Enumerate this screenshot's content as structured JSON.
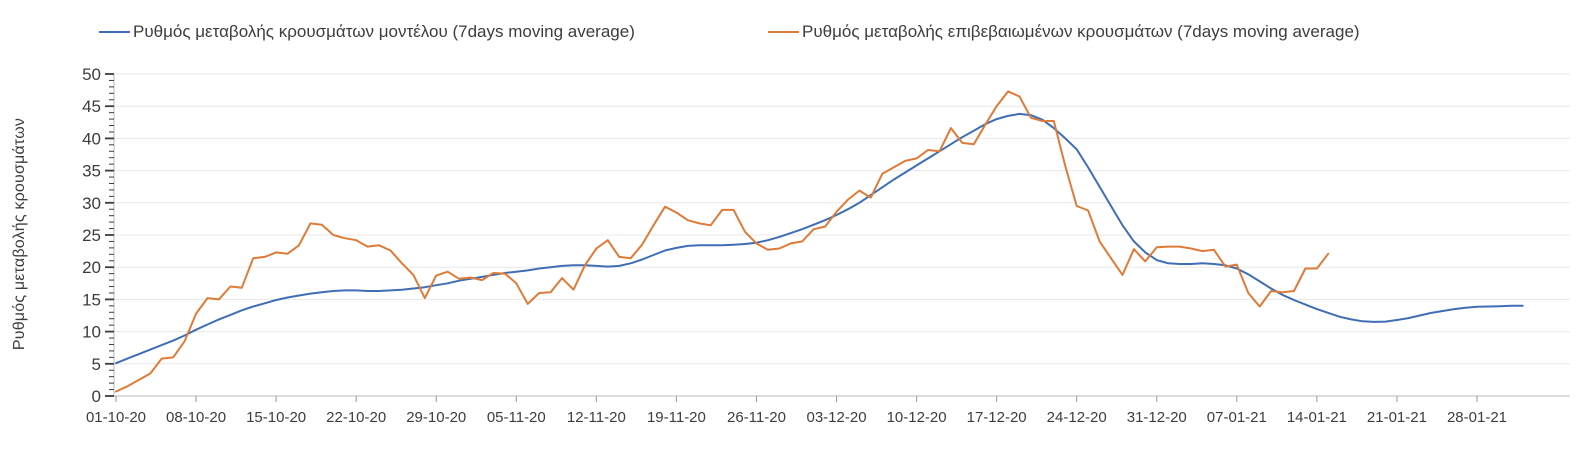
{
  "y_axis_title": "Ρυθμός μεταβολής κρουσμάτων",
  "colors": {
    "model_line": "#3f6eb5",
    "confirmed_line": "#de7b38",
    "gridline": "#e8e8e8",
    "axis_line": "#b8b8b8",
    "tick": "#3c3c3c",
    "label_text": "#3d3d3d"
  },
  "chart_data": {
    "type": "line",
    "title": "",
    "xlabel": "",
    "ylabel": "Ρυθμός μεταβολής κρουσμάτων",
    "ylim": [
      0,
      50
    ],
    "y_ticks": [
      0,
      5,
      10,
      15,
      20,
      25,
      30,
      35,
      40,
      45,
      50
    ],
    "grid": "horizontal",
    "legend_position": "top",
    "x_start_date": "01-10-20",
    "tick_step_days": 7,
    "x_tick_labels": [
      "01-10-20",
      "08-10-20",
      "15-10-20",
      "22-10-20",
      "29-10-20",
      "05-11-20",
      "12-11-20",
      "19-11-20",
      "26-11-20",
      "03-12-20",
      "10-12-20",
      "17-12-20",
      "24-12-20",
      "31-12-20",
      "07-01-21",
      "14-01-21",
      "21-01-21",
      "28-01-21"
    ],
    "series": [
      {
        "key": "model",
        "name": "Ρυθμός μεταβολής κρουσμάτων μοντέλου (7days moving average)",
        "color": "#3f6eb5",
        "start_day": 0,
        "values": [
          5.1,
          5.8,
          6.5,
          7.2,
          7.9,
          8.6,
          9.4,
          10.3,
          11.1,
          11.9,
          12.6,
          13.3,
          13.9,
          14.4,
          14.9,
          15.3,
          15.6,
          15.9,
          16.1,
          16.3,
          16.4,
          16.4,
          16.3,
          16.3,
          16.4,
          16.5,
          16.7,
          16.9,
          17.2,
          17.5,
          17.9,
          18.2,
          18.5,
          18.8,
          19.1,
          19.3,
          19.5,
          19.8,
          20.0,
          20.2,
          20.3,
          20.3,
          20.2,
          20.1,
          20.2,
          20.6,
          21.2,
          21.9,
          22.6,
          23.0,
          23.3,
          23.4,
          23.4,
          23.4,
          23.5,
          23.6,
          23.8,
          24.2,
          24.7,
          25.3,
          25.9,
          26.6,
          27.3,
          28.1,
          29.0,
          30.0,
          31.2,
          32.4,
          33.6,
          34.7,
          35.8,
          36.9,
          38.0,
          39.1,
          40.2,
          41.2,
          42.2,
          43.0,
          43.5,
          43.8,
          43.6,
          42.9,
          41.6,
          40.0,
          38.3,
          35.5,
          32.5,
          29.5,
          26.5,
          24.0,
          22.3,
          21.1,
          20.6,
          20.5,
          20.5,
          20.6,
          20.5,
          20.3,
          19.8,
          18.9,
          17.8,
          16.7,
          15.7,
          14.9,
          14.2,
          13.5,
          12.9,
          12.3,
          11.9,
          11.6,
          11.5,
          11.55,
          11.8,
          12.1,
          12.5,
          12.9,
          13.2,
          13.5,
          13.7,
          13.85,
          13.9,
          13.95,
          14.0,
          14.0
        ]
      },
      {
        "key": "confirmed",
        "name": "Ρυθμός μεταβολής επιβεβαιωμένων κρουσμάτων (7days moving average)",
        "color": "#de7b38",
        "start_day": 0,
        "values": [
          0.7,
          1.5,
          2.5,
          3.5,
          5.8,
          6.0,
          8.5,
          12.8,
          15.2,
          15.0,
          17.0,
          16.8,
          21.4,
          21.6,
          22.3,
          22.1,
          23.4,
          26.8,
          26.6,
          25.0,
          24.5,
          24.2,
          23.2,
          23.4,
          22.6,
          20.6,
          18.8,
          15.2,
          18.7,
          19.3,
          18.2,
          18.4,
          18.0,
          19.1,
          19.0,
          17.5,
          14.3,
          16.0,
          16.1,
          18.3,
          16.5,
          20.3,
          22.9,
          24.2,
          21.6,
          21.4,
          23.5,
          26.5,
          29.4,
          28.5,
          27.3,
          26.8,
          26.5,
          28.9,
          28.9,
          25.5,
          23.7,
          22.7,
          22.9,
          23.7,
          24.0,
          25.9,
          26.3,
          28.6,
          30.5,
          31.9,
          30.8,
          34.5,
          35.5,
          36.5,
          36.9,
          38.2,
          38.0,
          41.6,
          39.3,
          39.1,
          42.1,
          45.0,
          47.3,
          46.5,
          43.2,
          42.7,
          42.7,
          35.7,
          29.5,
          28.8,
          24.0,
          21.4,
          18.8,
          22.8,
          20.9,
          23.1,
          23.2,
          23.2,
          22.9,
          22.5,
          22.7,
          20.1,
          20.4,
          16.0,
          13.9,
          16.3,
          16.1,
          16.3,
          19.8,
          19.8,
          22.1
        ]
      }
    ]
  }
}
